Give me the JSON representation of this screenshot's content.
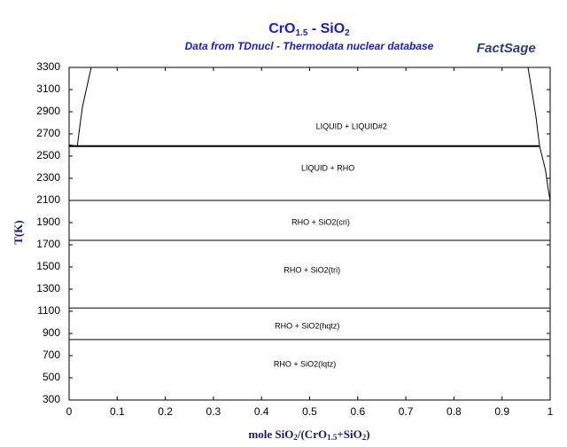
{
  "chart_data": {
    "type": "line",
    "title": [
      "CrO",
      "1.5",
      " - SiO",
      "2"
    ],
    "subtitle": "Data from TDnucl - Thermodata nuclear database",
    "logo": "FactSage",
    "x_label": [
      "mole SiO",
      "2",
      "/(CrO",
      "1.5",
      "+SiO",
      "2",
      ")"
    ],
    "y_label": "T(K)",
    "xlim": [
      0,
      1
    ],
    "ylim": [
      300,
      3300
    ],
    "xticks": [
      0,
      0.1,
      0.2,
      0.3,
      0.4,
      0.5,
      0.6,
      0.7,
      0.8,
      0.9,
      1
    ],
    "yticks": [
      300,
      500,
      700,
      900,
      1100,
      1300,
      1500,
      1700,
      1900,
      2100,
      2300,
      2500,
      2700,
      2900,
      3100,
      3300
    ],
    "series": [
      {
        "color": "#000000",
        "x": [
          0,
          0.017,
          0.022,
          0.028,
          0.046
        ],
        "values": [
          2600,
          2590,
          2760,
          2950,
          3300
        ]
      },
      {
        "color": "#000000",
        "x": [
          0.954,
          0.97,
          0.978,
          0.99,
          0.996,
          1
        ],
        "values": [
          3300,
          2870,
          2590,
          2380,
          2200,
          2100
        ]
      },
      {
        "color": "#000000",
        "x": [
          0,
          0.978
        ],
        "values": [
          2590,
          2590
        ]
      },
      {
        "color": "#000000",
        "x": [
          0,
          1
        ],
        "values": [
          2100,
          2100
        ]
      },
      {
        "color": "#000000",
        "x": [
          0,
          1
        ],
        "values": [
          1740,
          1740
        ]
      },
      {
        "color": "#000000",
        "x": [
          0,
          1
        ],
        "values": [
          1130,
          1130
        ]
      },
      {
        "color": "#000000",
        "x": [
          0,
          1
        ],
        "values": [
          845,
          845
        ]
      }
    ],
    "annotations": [
      "LIQUID + LIQUID#2",
      "LIQUID + RHO",
      "RHO + SiO2(cri)",
      "RHO + SiO2(tri)",
      "RHO + SiO2(hqtz)",
      "RHO + SiO2(lqtz)"
    ]
  }
}
